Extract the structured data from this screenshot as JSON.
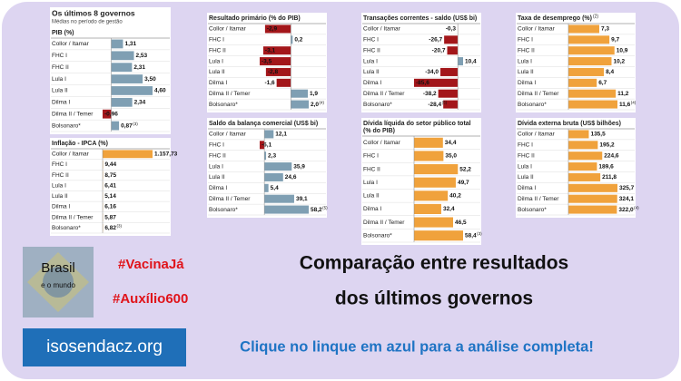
{
  "header": {
    "title": "Os últimos 8 governos",
    "subtitle": "Médias no período de gestão"
  },
  "chart_data": [
    {
      "type": "bar",
      "title": "PIB (%)",
      "color": "#7f9fb3",
      "negative_color": "#a3161a",
      "categories": [
        "Collor / Itamar",
        "FHC I",
        "FHC II",
        "Lula I",
        "Lula II",
        "Dilma I",
        "Dilma II / Temer",
        "Bolsonaro*"
      ],
      "values": [
        1.31,
        2.53,
        2.31,
        3.5,
        4.6,
        2.34,
        -0.96,
        0.87
      ],
      "value_labels": [
        "1,31",
        "2,53",
        "2,31",
        "3,50",
        "4,60",
        "2,34",
        "-0,96",
        "0,87"
      ],
      "value_notes": [
        null,
        null,
        null,
        null,
        null,
        null,
        null,
        "(3)"
      ]
    },
    {
      "type": "bar",
      "title": "Inflação - IPCA (%)",
      "color": "#f0a23c",
      "negative_color": "#a3161a",
      "categories": [
        "Collor / Itamar",
        "FHC I",
        "FHC II",
        "Lula I",
        "Lula II",
        "Dilma I",
        "Dilma II / Temer",
        "Bolsonaro*"
      ],
      "values": [
        1157.73,
        9.44,
        8.75,
        6.41,
        5.14,
        6.16,
        5.87,
        6.82
      ],
      "value_labels": [
        "1.157,73",
        "9,44",
        "8,75",
        "6,41",
        "5,14",
        "6,16",
        "5,87",
        "6,82"
      ],
      "value_notes": [
        null,
        null,
        null,
        null,
        null,
        null,
        null,
        "(3)"
      ]
    },
    {
      "type": "bar",
      "title": "Resultado primário (% do PIB)",
      "color": "#7f9fb3",
      "negative_color": "#a3161a",
      "categories": [
        "Collor / Itamar",
        "FHC I",
        "FHC II",
        "Lula I",
        "Lula II",
        "Dilma I",
        "Dilma II / Temer",
        "Bolsonaro*"
      ],
      "values": [
        -2.9,
        0.2,
        -3.1,
        -3.5,
        -2.8,
        -1.6,
        1.9,
        2.0
      ],
      "value_labels": [
        "-2,9",
        "0,2",
        "-3,1",
        "-3,5",
        "-2,8",
        "-1,6",
        "1,9",
        "2,0"
      ],
      "value_notes": [
        null,
        null,
        null,
        null,
        null,
        null,
        null,
        "(4)"
      ]
    },
    {
      "type": "bar",
      "title": "Saldo da balança comercial (US$ bi)",
      "color": "#7f9fb3",
      "negative_color": "#a3161a",
      "categories": [
        "Collor / Itamar",
        "FHC I",
        "FHC II",
        "Lula I",
        "Lula II",
        "Dilma I",
        "Dilma II / Temer",
        "Bolsonaro*"
      ],
      "values": [
        12.1,
        -6.1,
        2.3,
        35.9,
        24.6,
        5.4,
        39.1,
        58.2
      ],
      "value_labels": [
        "12,1",
        "-6,1",
        "2,3",
        "35,9",
        "24,6",
        "5,4",
        "39,1",
        "58,2"
      ],
      "value_notes": [
        null,
        null,
        null,
        null,
        null,
        null,
        null,
        "(5)"
      ]
    },
    {
      "type": "bar",
      "title": "Transações correntes - saldo (US$ bi)",
      "color": "#7f9fb3",
      "negative_color": "#a3161a",
      "categories": [
        "Collor / Itamar",
        "FHC I",
        "FHC II",
        "Lula I",
        "Lula II",
        "Dilma I",
        "Dilma II / Temer",
        "Bolsonaro*"
      ],
      "values": [
        -0.3,
        -26.7,
        -20.7,
        10.4,
        -34.0,
        -85.6,
        -38.2,
        -28.4
      ],
      "value_labels": [
        "-0,3",
        "-26,7",
        "-20,7",
        "10,4",
        "-34,0",
        "-85,6",
        "-38,2",
        "-28,4"
      ],
      "value_notes": [
        null,
        null,
        null,
        null,
        null,
        null,
        null,
        "(5)"
      ]
    },
    {
      "type": "bar",
      "title": "Dívida líquida do setor público total",
      "subtitle": "(% do PIB)",
      "color": "#f0a23c",
      "negative_color": "#a3161a",
      "categories": [
        "Collor / Itamar",
        "FHC I",
        "FHC II",
        "Lula I",
        "Lula II",
        "Dilma I",
        "Dilma II / Temer",
        "Bolsonaro*"
      ],
      "values": [
        34.4,
        35.0,
        52.2,
        49.7,
        40.2,
        32.4,
        46.5,
        58.4
      ],
      "value_labels": [
        "34,4",
        "35,0",
        "52,2",
        "49,7",
        "40,2",
        "32,4",
        "46,5",
        "58,4"
      ],
      "value_notes": [
        null,
        null,
        null,
        null,
        null,
        null,
        null,
        "(3)"
      ]
    },
    {
      "type": "bar",
      "title": "Taxa de desemprego (%)",
      "title_note": "(2)",
      "color": "#f0a23c",
      "negative_color": "#a3161a",
      "categories": [
        "Collor / Itamar",
        "FHC I",
        "FHC II",
        "Lula I",
        "Lula II",
        "Dilma I",
        "Dilma II / Temer",
        "Bolsonaro*"
      ],
      "values": [
        7.3,
        9.7,
        10.9,
        10.2,
        8.4,
        6.7,
        11.2,
        11.6
      ],
      "value_labels": [
        "7,3",
        "9,7",
        "10,9",
        "10,2",
        "8,4",
        "6,7",
        "11,2",
        "11,6"
      ],
      "value_notes": [
        null,
        null,
        null,
        null,
        null,
        null,
        null,
        "(4)"
      ]
    },
    {
      "type": "bar",
      "title": "Dívida externa bruta (US$ bilhões)",
      "color": "#f0a23c",
      "negative_color": "#a3161a",
      "categories": [
        "Collor / Itamar",
        "FHC I",
        "FHC II",
        "Lula I",
        "Lula II",
        "Dilma I",
        "Dilma II / Temer",
        "Bolsonaro*"
      ],
      "values": [
        135.5,
        195.2,
        224.6,
        189.6,
        211.8,
        325.7,
        324.1,
        322.0
      ],
      "value_labels": [
        "135,5",
        "195,2",
        "224,6",
        "189,6",
        "211,8",
        "325,7",
        "324,1",
        "322,0"
      ],
      "value_notes": [
        null,
        null,
        null,
        null,
        null,
        null,
        null,
        "(4)"
      ]
    }
  ],
  "banner": {
    "logo_title": "Brasil",
    "logo_subtitle": "e o mundo",
    "hashtag1": "#VacinaJá",
    "hashtag2": "#Auxílio600",
    "headline_line1": "Comparação entre resultados",
    "headline_line2": "dos últimos governos",
    "link": "isosendacz.org",
    "call_to_action": "Clique no linque em azul para a análise completa!"
  }
}
